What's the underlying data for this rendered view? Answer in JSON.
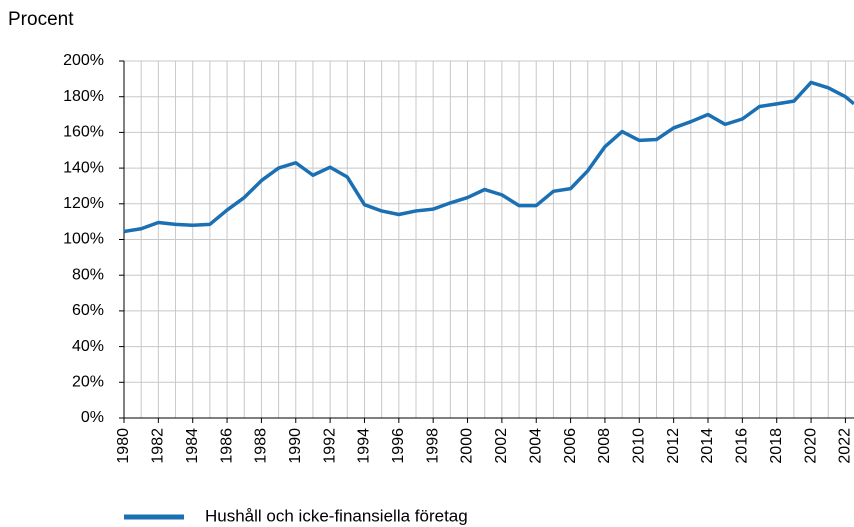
{
  "chart_data": {
    "type": "line",
    "y_label": "Procent",
    "x": [
      1980,
      1981,
      1982,
      1983,
      1984,
      1985,
      1986,
      1987,
      1988,
      1989,
      1990,
      1991,
      1992,
      1993,
      1994,
      1995,
      1996,
      1997,
      1998,
      1999,
      2000,
      2001,
      2002,
      2003,
      2004,
      2005,
      2006,
      2007,
      2008,
      2009,
      2010,
      2011,
      2012,
      2013,
      2014,
      2015,
      2016,
      2017,
      2018,
      2019,
      2020,
      2021,
      2022,
      2022.5
    ],
    "series": [
      {
        "name": "Hushåll och icke-finansiella företag",
        "color": "#1b6fb3",
        "values": [
          104.5,
          106,
          109.5,
          108.5,
          108,
          108.5,
          116.5,
          123.5,
          133,
          140,
          143,
          136,
          140.5,
          135,
          119.5,
          116,
          114,
          116,
          117,
          120.5,
          123.5,
          128,
          125,
          119,
          119,
          127,
          128.5,
          138.5,
          152,
          160.5,
          155.5,
          156,
          162.5,
          166,
          170,
          164.5,
          167.5,
          174.5,
          176,
          177.5,
          188,
          185,
          180,
          176
        ]
      }
    ],
    "xlim": [
      1980,
      2022.5
    ],
    "xticks": [
      1980,
      1982,
      1984,
      1986,
      1988,
      1990,
      1992,
      1994,
      1996,
      1998,
      2000,
      2002,
      2004,
      2006,
      2008,
      2010,
      2012,
      2014,
      2016,
      2018,
      2020,
      2022
    ],
    "ylim": [
      0,
      200
    ],
    "yticks": [
      {
        "value": 0,
        "label": "0%"
      },
      {
        "value": 20,
        "label": "20%"
      },
      {
        "value": 40,
        "label": "40%"
      },
      {
        "value": 60,
        "label": "60%"
      },
      {
        "value": 80,
        "label": "80%"
      },
      {
        "value": 100,
        "label": "100%"
      },
      {
        "value": 120,
        "label": "120%"
      },
      {
        "value": 140,
        "label": "140%"
      },
      {
        "value": 160,
        "label": "160%"
      },
      {
        "value": 180,
        "label": "180%"
      },
      {
        "value": 200,
        "label": "200%"
      }
    ],
    "grid": true
  }
}
